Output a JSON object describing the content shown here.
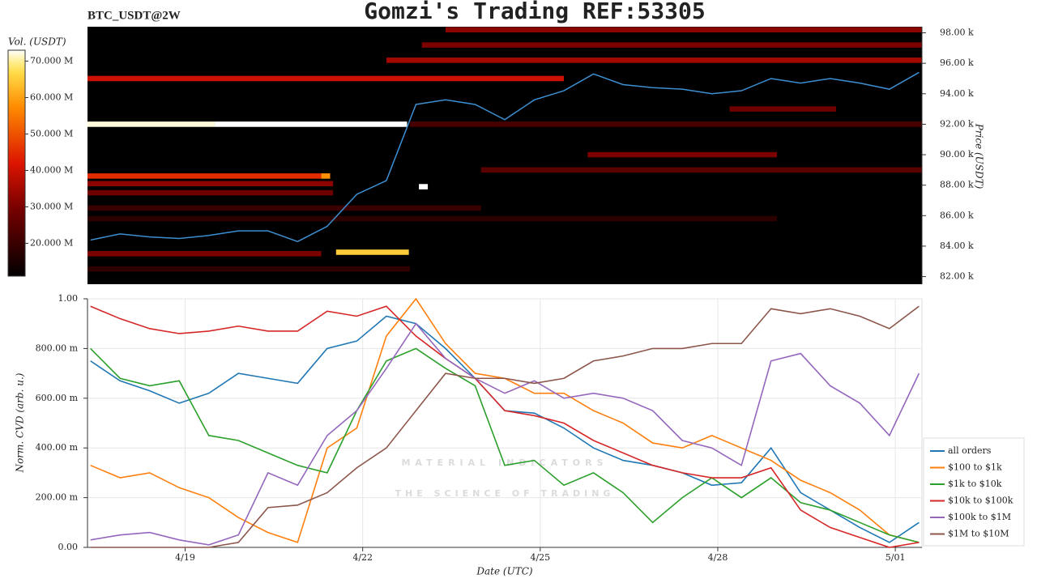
{
  "chart_data": [
    {
      "type": "heatmap",
      "title": "Gomzi's Trading REF:53305",
      "subtitle": "BTC_USDT@2W",
      "y_label": "Price (USDT)",
      "colorbar_label": "Vol. (USDT)",
      "colormap": "hot",
      "xlim": [
        17.35,
        31.45
      ],
      "ylim": [
        81500,
        98400
      ],
      "yticks": [
        {
          "value": 82000,
          "label": "82.00 k"
        },
        {
          "value": 84000,
          "label": "84.00 k"
        },
        {
          "value": 86000,
          "label": "86.00 k"
        },
        {
          "value": 88000,
          "label": "88.00 k"
        },
        {
          "value": 90000,
          "label": "90.00 k"
        },
        {
          "value": 92000,
          "label": "92.00 k"
        },
        {
          "value": 94000,
          "label": "94.00 k"
        },
        {
          "value": 96000,
          "label": "96.00 k"
        },
        {
          "value": 98000,
          "label": "98.00 k"
        }
      ],
      "vlim": [
        11000000,
        73000000
      ],
      "vticks": [
        {
          "value": 20000000,
          "label": "20.000 M"
        },
        {
          "value": 30000000,
          "label": "30.000 M"
        },
        {
          "value": 40000000,
          "label": "40.000 M"
        },
        {
          "value": 50000000,
          "label": "50.000 M"
        },
        {
          "value": 60000000,
          "label": "60.000 M"
        },
        {
          "value": 70000000,
          "label": "70.000 M"
        }
      ],
      "bands": [
        {
          "price": 92000,
          "start": 17.35,
          "end": 19.5,
          "volume": 72000000
        },
        {
          "price": 92000,
          "start": 19.5,
          "end": 22.75,
          "volume": 76000000
        },
        {
          "price": 88600,
          "start": 17.35,
          "end": 21.3,
          "volume": 45000000
        },
        {
          "price": 88600,
          "start": 21.3,
          "end": 21.45,
          "volume": 58000000
        },
        {
          "price": 83600,
          "start": 21.55,
          "end": 22.78,
          "volume": 65000000
        },
        {
          "price": 95000,
          "start": 17.35,
          "end": 25.4,
          "volume": 40000000
        },
        {
          "price": 96200,
          "start": 22.4,
          "end": 31.45,
          "volume": 35000000
        },
        {
          "price": 97200,
          "start": 23.0,
          "end": 31.45,
          "volume": 30000000
        },
        {
          "price": 98200,
          "start": 23.4,
          "end": 31.45,
          "volume": 32000000
        },
        {
          "price": 92000,
          "start": 22.8,
          "end": 31.45,
          "volume": 22000000
        },
        {
          "price": 90000,
          "start": 25.8,
          "end": 29.0,
          "volume": 30000000
        },
        {
          "price": 89000,
          "start": 24.0,
          "end": 31.45,
          "volume": 25000000
        },
        {
          "price": 93000,
          "start": 28.2,
          "end": 30.0,
          "volume": 28000000
        },
        {
          "price": 88100,
          "start": 17.35,
          "end": 21.5,
          "volume": 32000000
        },
        {
          "price": 87500,
          "start": 17.35,
          "end": 21.5,
          "volume": 28000000
        },
        {
          "price": 86500,
          "start": 17.35,
          "end": 24.0,
          "volume": 20000000
        },
        {
          "price": 85800,
          "start": 17.35,
          "end": 29.0,
          "volume": 18000000
        },
        {
          "price": 83500,
          "start": 17.35,
          "end": 21.3,
          "volume": 30000000
        },
        {
          "price": 82500,
          "start": 17.35,
          "end": 22.8,
          "volume": 18000000
        },
        {
          "price": 87900,
          "start": 22.95,
          "end": 23.1,
          "volume": 76000000
        }
      ],
      "x": [
        17.4,
        17.9,
        18.4,
        18.9,
        19.4,
        19.9,
        20.4,
        20.9,
        21.4,
        21.9,
        22.4,
        22.9,
        23.4,
        23.9,
        24.4,
        24.9,
        25.4,
        25.9,
        26.4,
        26.9,
        27.4,
        27.9,
        28.4,
        28.9,
        29.4,
        29.9,
        30.4,
        30.9,
        31.4
      ],
      "price_color": "#3d8fd1",
      "price": [
        84400,
        84800,
        84600,
        84500,
        84700,
        85000,
        85000,
        84300,
        85300,
        87400,
        88300,
        93300,
        93600,
        93300,
        92300,
        93600,
        94200,
        95300,
        94600,
        94400,
        94300,
        94000,
        94200,
        95000,
        94700,
        95000,
        94700,
        94300,
        95400
      ]
    },
    {
      "type": "line",
      "x_label": "Date (UTC)",
      "y_label": "Norm. CVD (arb. u.)",
      "watermark": "MATERIAL INDICATORS",
      "watermark_sub": "THE SCIENCE OF TRADING",
      "grid": true,
      "legend": "lower right",
      "xlim": [
        17.35,
        31.45
      ],
      "ylim": [
        0,
        1
      ],
      "xticks": [
        {
          "value": 19,
          "label": "4/19"
        },
        {
          "value": 22,
          "label": "4/22"
        },
        {
          "value": 25,
          "label": "4/25"
        },
        {
          "value": 28,
          "label": "4/28"
        },
        {
          "value": 31,
          "label": "5/01"
        }
      ],
      "yticks": [
        {
          "value": 0,
          "label": "0.00"
        },
        {
          "value": 0.2,
          "label": "200.00 m"
        },
        {
          "value": 0.4,
          "label": "400.00 m"
        },
        {
          "value": 0.6,
          "label": "600.00 m"
        },
        {
          "value": 0.8,
          "label": "800.00 m"
        },
        {
          "value": 1,
          "label": "1.00"
        }
      ],
      "x": [
        17.4,
        17.9,
        18.4,
        18.9,
        19.4,
        19.9,
        20.4,
        20.9,
        21.4,
        21.9,
        22.4,
        22.9,
        23.4,
        23.9,
        24.4,
        24.9,
        25.4,
        25.9,
        26.4,
        26.9,
        27.4,
        27.9,
        28.4,
        28.9,
        29.4,
        29.9,
        30.4,
        30.9,
        31.4
      ],
      "series": [
        {
          "name": "all orders",
          "color": "#1f77b4",
          "values": [
            0.75,
            0.67,
            0.63,
            0.58,
            0.62,
            0.7,
            0.68,
            0.66,
            0.8,
            0.83,
            0.93,
            0.9,
            0.8,
            0.68,
            0.55,
            0.54,
            0.48,
            0.4,
            0.35,
            0.33,
            0.3,
            0.25,
            0.26,
            0.4,
            0.22,
            0.15,
            0.08,
            0.02,
            0.1
          ]
        },
        {
          "name": "$100 to $1k",
          "color": "#ff7f0e",
          "values": [
            0.33,
            0.28,
            0.3,
            0.24,
            0.2,
            0.12,
            0.06,
            0.02,
            0.4,
            0.48,
            0.85,
            1.0,
            0.82,
            0.7,
            0.68,
            0.62,
            0.62,
            0.55,
            0.5,
            0.42,
            0.4,
            0.45,
            0.4,
            0.35,
            0.27,
            0.22,
            0.15,
            0.05,
            0.02
          ]
        },
        {
          "name": "$1k to $10k",
          "color": "#2ca02c",
          "values": [
            0.8,
            0.68,
            0.65,
            0.67,
            0.45,
            0.43,
            0.38,
            0.33,
            0.3,
            0.55,
            0.75,
            0.8,
            0.72,
            0.65,
            0.33,
            0.35,
            0.25,
            0.3,
            0.22,
            0.1,
            0.2,
            0.28,
            0.2,
            0.28,
            0.18,
            0.15,
            0.1,
            0.05,
            0.02
          ]
        },
        {
          "name": "$10k to $100k",
          "color": "#d62728",
          "values": [
            0.97,
            0.92,
            0.88,
            0.86,
            0.87,
            0.89,
            0.87,
            0.87,
            0.95,
            0.93,
            0.97,
            0.85,
            0.76,
            0.68,
            0.55,
            0.53,
            0.5,
            0.43,
            0.38,
            0.33,
            0.3,
            0.28,
            0.28,
            0.32,
            0.15,
            0.08,
            0.04,
            0.0,
            0.02
          ]
        },
        {
          "name": "$100k to $1M",
          "color": "#9467bd",
          "values": [
            0.03,
            0.05,
            0.06,
            0.03,
            0.01,
            0.05,
            0.3,
            0.25,
            0.45,
            0.55,
            0.72,
            0.9,
            0.76,
            0.68,
            0.62,
            0.67,
            0.6,
            0.62,
            0.6,
            0.55,
            0.43,
            0.4,
            0.33,
            0.75,
            0.78,
            0.65,
            0.58,
            0.45,
            0.7
          ]
        },
        {
          "name": "$1M to $10M",
          "color": "#8c564b",
          "values": [
            0,
            0,
            0,
            0,
            0,
            0.02,
            0.16,
            0.17,
            0.22,
            0.32,
            0.4,
            0.55,
            0.7,
            0.68,
            0.68,
            0.66,
            0.68,
            0.75,
            0.77,
            0.8,
            0.8,
            0.82,
            0.82,
            0.96,
            0.94,
            0.96,
            0.93,
            0.88,
            0.97
          ]
        }
      ]
    }
  ]
}
